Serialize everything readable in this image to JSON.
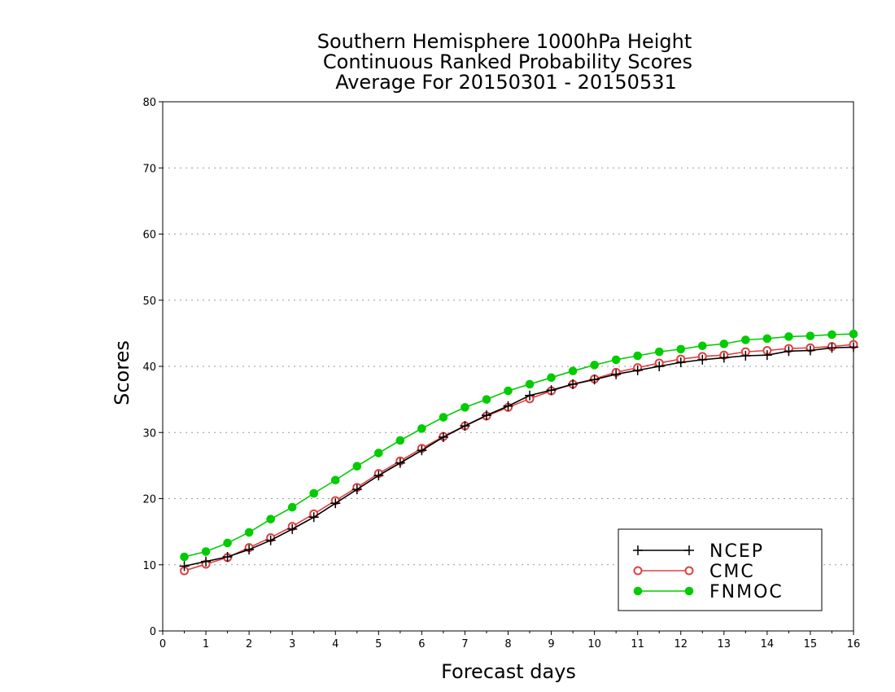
{
  "chart_data": {
    "type": "line",
    "title": [
      "Southern Hemisphere 1000hPa Height",
      "Continuous Ranked Probability Scores",
      "Average For 20150301 - 20150531"
    ],
    "xlabel": "Forecast days",
    "ylabel": "Scores",
    "xlim": [
      0,
      16
    ],
    "ylim": [
      0,
      80
    ],
    "xticks": [
      "0",
      "1",
      "2",
      "3",
      "4",
      "5",
      "6",
      "7",
      "8",
      "9",
      "10",
      "11",
      "12",
      "13",
      "14",
      "15",
      "16"
    ],
    "yticks": [
      "0",
      "10",
      "20",
      "30",
      "40",
      "50",
      "60",
      "70",
      "80"
    ],
    "grid": "horizontal dotted",
    "legend_position": "bottom-right",
    "x": [
      0.5,
      1,
      1.5,
      2,
      2.5,
      3,
      3.5,
      4,
      4.5,
      5,
      5.5,
      6,
      6.5,
      7,
      7.5,
      8,
      8.5,
      9,
      9.5,
      10,
      10.5,
      11,
      11.5,
      12,
      12.5,
      13,
      13.5,
      14,
      14.5,
      15,
      15.5,
      16
    ],
    "series": [
      {
        "name": "NCEP",
        "color": "#000000",
        "marker": "plus",
        "values": [
          9.8,
          10.5,
          11.2,
          12.3,
          13.7,
          15.4,
          17.2,
          19.3,
          21.4,
          23.5,
          25.4,
          27.3,
          29.3,
          31.0,
          32.6,
          34.0,
          35.6,
          36.4,
          37.3,
          38.0,
          38.8,
          39.4,
          40.0,
          40.6,
          41.0,
          41.3,
          41.6,
          41.7,
          42.3,
          42.4,
          42.8,
          42.9
        ]
      },
      {
        "name": "CMC",
        "color": "#e04040",
        "marker": "open-circle",
        "values": [
          9.1,
          10.1,
          11.1,
          12.6,
          14.1,
          15.8,
          17.7,
          19.7,
          21.7,
          23.8,
          25.7,
          27.6,
          29.4,
          31.0,
          32.5,
          33.8,
          35.1,
          36.3,
          37.3,
          38.1,
          39.1,
          39.8,
          40.5,
          41.1,
          41.5,
          41.7,
          42.2,
          42.4,
          42.7,
          42.8,
          43.0,
          43.3
        ]
      },
      {
        "name": "FNMOC",
        "color": "#00cc00",
        "marker": "filled-circle",
        "values": [
          11.2,
          12.0,
          13.3,
          14.9,
          16.9,
          18.7,
          20.8,
          22.8,
          24.9,
          26.9,
          28.8,
          30.6,
          32.3,
          33.8,
          35.0,
          36.3,
          37.3,
          38.3,
          39.3,
          40.2,
          41.0,
          41.6,
          42.2,
          42.6,
          43.1,
          43.4,
          44.0,
          44.2,
          44.5,
          44.6,
          44.8,
          44.9
        ]
      }
    ]
  }
}
